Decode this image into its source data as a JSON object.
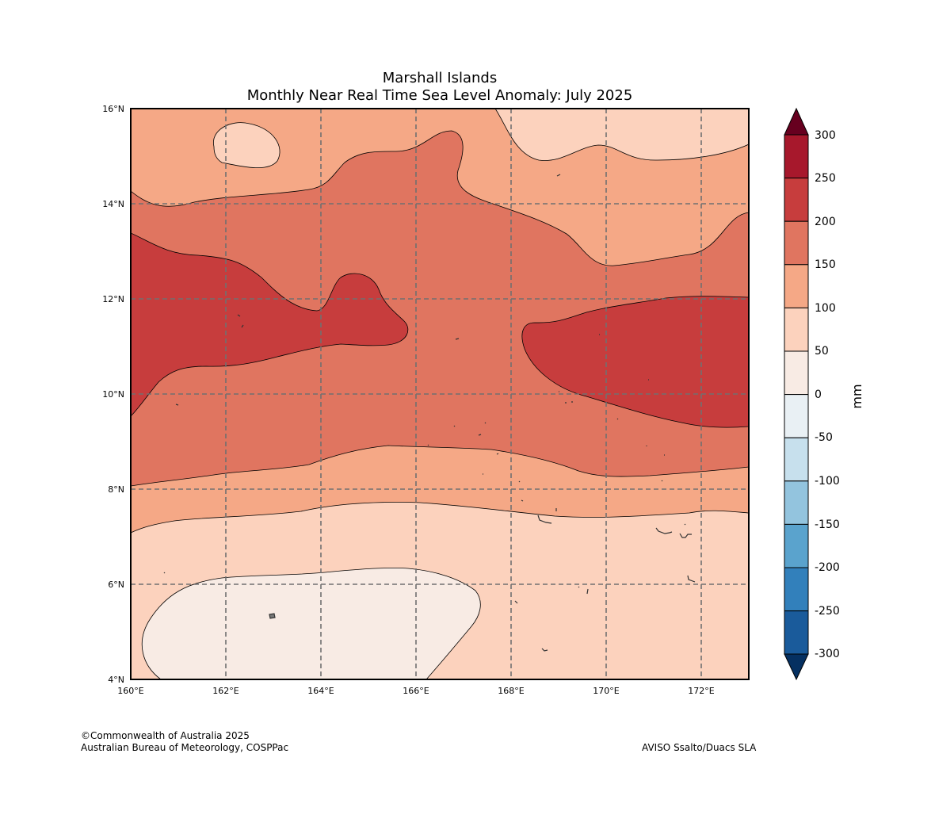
{
  "title_line1": "Marshall Islands",
  "title_line2": "Monthly Near Real Time Sea Level Anomaly: July 2025",
  "map": {
    "lon_labels": [
      "160°E",
      "162°E",
      "164°E",
      "166°E",
      "168°E",
      "170°E",
      "172°E"
    ],
    "lat_labels": [
      "4°N",
      "6°N",
      "8°N",
      "10°N",
      "12°N",
      "14°N",
      "16°N"
    ],
    "lon_range": [
      160,
      173
    ],
    "lat_range": [
      4,
      16
    ],
    "gridlines": "dashed grey every 2 degrees"
  },
  "colorbar": {
    "unit": "mm",
    "ticks": [
      "300",
      "250",
      "200",
      "150",
      "100",
      "50",
      "0",
      "-50",
      "-100",
      "-150",
      "-200",
      "-250",
      "-300"
    ],
    "colors": {
      "above_300": "#67001f",
      "250_300": "#a7182c",
      "200_250": "#c73d3d",
      "150_200": "#e07560",
      "100_150": "#f5a886",
      "50_100": "#fcd2bd",
      "0_50": "#f8ebe4",
      "-50_0": "#e9f0f4",
      "-100_-50": "#c7e0ed",
      "-150_-100": "#93c4de",
      "-200_-150": "#5aa3cd",
      "-250_-200": "#3280bb",
      "-300_-250": "#1a5b9b",
      "below_-300": "#053061"
    }
  },
  "footer": {
    "copyright": "©Commonwealth of Australia 2025",
    "agency": "Australian Bureau of Meteorology, COSPPac",
    "source": "AVISO Ssalto/Duacs SLA"
  }
}
